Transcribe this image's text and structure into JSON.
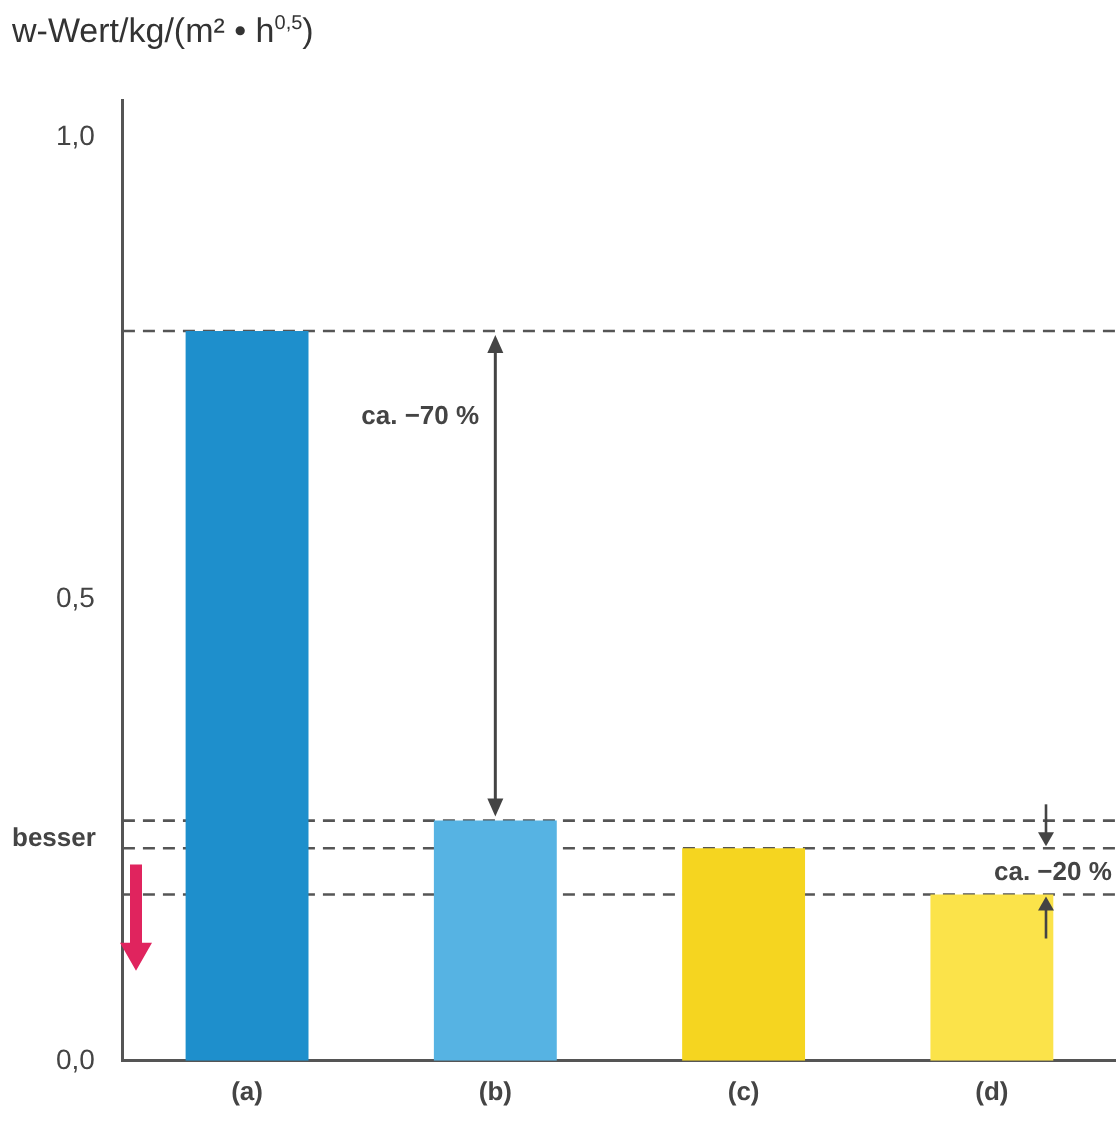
{
  "chart_data": {
    "type": "bar",
    "ylabel": "w-Wert/kg/(m² • h$^{0,5}$)",
    "categories": [
      "(a)",
      "(b)",
      "(c)",
      "(d)"
    ],
    "values": [
      0.79,
      0.26,
      0.23,
      0.18
    ],
    "colors": [
      "#1e8fcc",
      "#56b3e3",
      "#f5d520",
      "#fbe34a"
    ],
    "ylim": [
      0,
      1.04
    ],
    "yticks": [
      {
        "value": 0,
        "label": "0,0"
      },
      {
        "value": 0.5,
        "label": "0,5"
      },
      {
        "value": 1,
        "label": "1,0"
      }
    ],
    "grid": false,
    "legend": false,
    "ref_lines": [
      {
        "axis": "y",
        "value": 0.79,
        "color": "#555555",
        "line_style": "dashed"
      },
      {
        "axis": "y",
        "value": 0.26,
        "color": "#555555",
        "line_style": "dashed"
      },
      {
        "axis": "y",
        "value": 0.23,
        "color": "#555555",
        "line_style": "dashed"
      },
      {
        "axis": "y",
        "value": 0.18,
        "color": "#555555",
        "line_style": "dashed"
      }
    ],
    "annotations": [
      "ca. −70 %",
      "ca. −20 %",
      "besser"
    ]
  }
}
